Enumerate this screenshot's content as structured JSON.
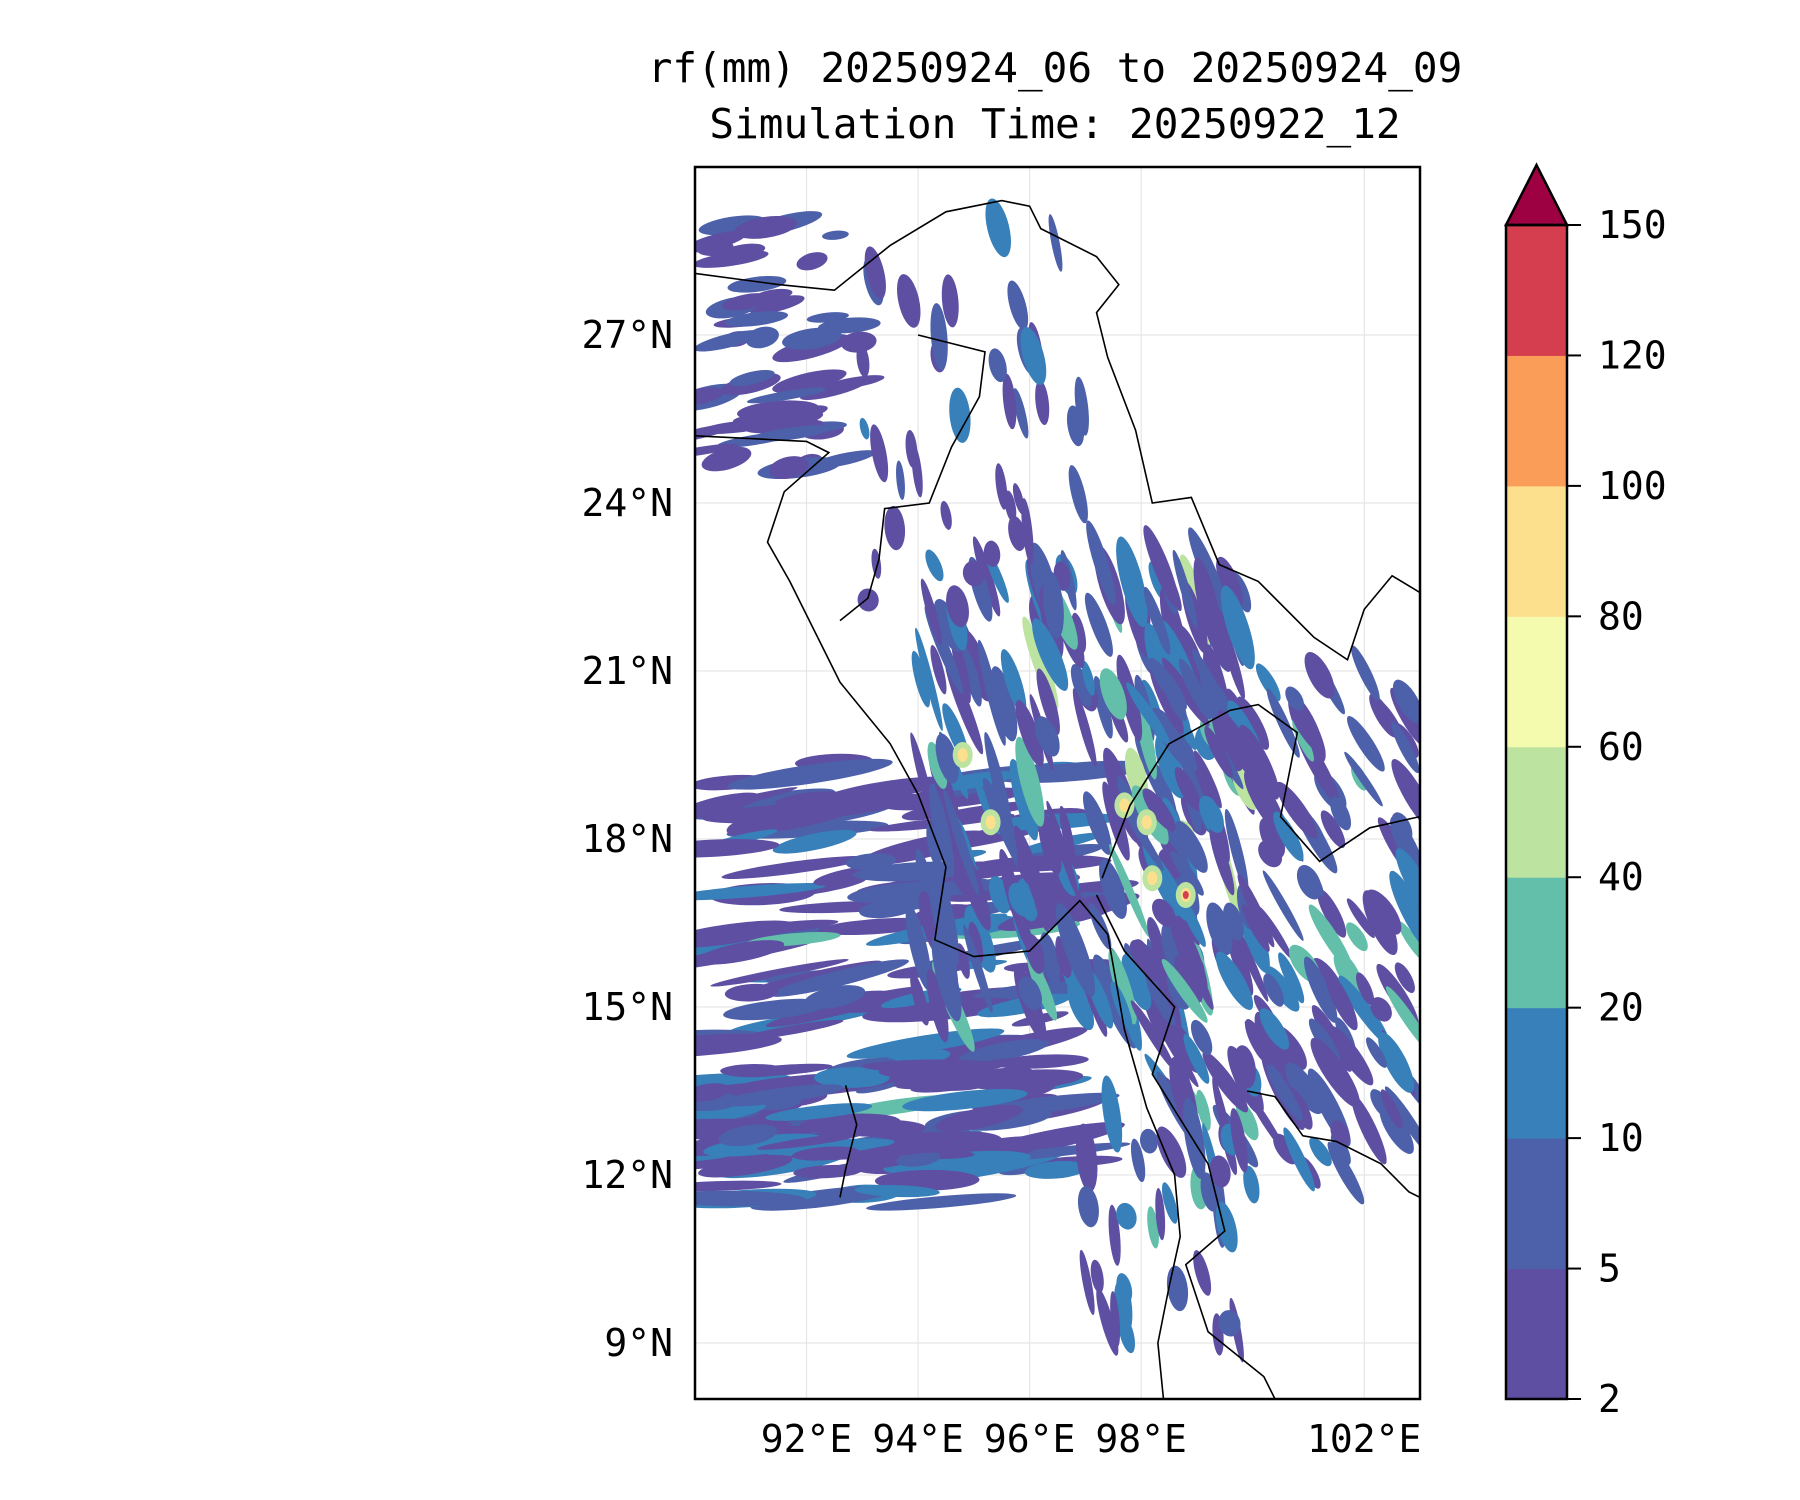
{
  "chart_data": {
    "type": "heatmap",
    "title": "rf(mm) 20250924_06 to 20250924_09",
    "subtitle": "Simulation Time: 20250922_12",
    "xlabel": "",
    "ylabel": "",
    "xlim": [
      90,
      103
    ],
    "ylim": [
      8,
      30
    ],
    "grid": true,
    "x_ticks": [
      92,
      94,
      96,
      98,
      102
    ],
    "x_tick_labels": [
      "92°E",
      "94°E",
      "96°E",
      "98°E",
      "102°E"
    ],
    "y_ticks": [
      9,
      12,
      15,
      18,
      21,
      24,
      27
    ],
    "y_tick_labels": [
      "9°N",
      "12°N",
      "15°N",
      "18°N",
      "21°N",
      "24°N",
      "27°N"
    ],
    "colorbar": {
      "position": "right",
      "extend": "max",
      "levels": [
        2,
        5,
        10,
        20,
        40,
        60,
        80,
        100,
        120,
        150
      ],
      "tick_labels": [
        "2",
        "5",
        "10",
        "20",
        "40",
        "60",
        "80",
        "100",
        "120",
        "150"
      ],
      "colors": [
        "#5e4fa2",
        "#4d60aa",
        "#3880b9",
        "#63bfa9",
        "#bde3a0",
        "#f4fbaf",
        "#fde08d",
        "#f99d59",
        "#d53e4f"
      ],
      "over_color": "#9e0142"
    }
  }
}
